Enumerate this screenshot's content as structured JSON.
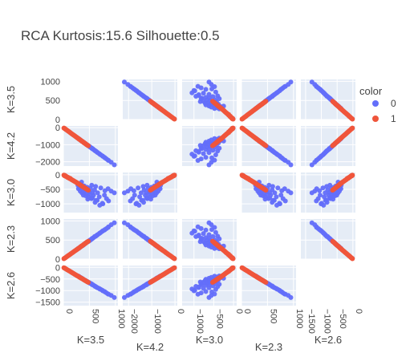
{
  "title": "RCA Kurtosis:15.6  Silhouette:0.5",
  "chart_data": {
    "type": "scatter",
    "subtype": "scatter-matrix",
    "dimensions": [
      "K=3.5",
      "K=4.2",
      "K=3.0",
      "K=2.3",
      "K=2.6"
    ],
    "ranges": [
      [
        0,
        1050
      ],
      [
        -2250,
        100
      ],
      [
        -1300,
        80
      ],
      [
        0,
        1050
      ],
      [
        -1650,
        80
      ]
    ],
    "ticks": [
      {
        "values": [
          0,
          500,
          1000
        ],
        "labels": [
          "0",
          "500",
          "1000"
        ]
      },
      {
        "values": [
          -2000,
          -1000,
          0
        ],
        "labels": [
          "−2000",
          "−1000",
          "0"
        ]
      },
      {
        "values": [
          -1000,
          -500,
          0
        ],
        "labels": [
          "−1000",
          "−500",
          "0"
        ]
      },
      {
        "values": [
          0,
          500,
          1000
        ],
        "labels": [
          "0",
          "500",
          "1000"
        ]
      },
      {
        "values": [
          -1500,
          -1000,
          -500,
          0
        ],
        "labels": [
          "−1500",
          "−1000",
          "−500",
          "0"
        ]
      }
    ],
    "diagonal": "empty",
    "grid": true,
    "legend": {
      "title": "color",
      "position": "top-right",
      "entries": [
        {
          "name": "0",
          "color": "#636efa"
        },
        {
          "name": "1",
          "color": "#ef553b"
        }
      ]
    },
    "series": [
      {
        "name": "0",
        "color": "#636efa",
        "points": [
          [
            980,
            -2180,
            -620,
            950,
            -1300
          ],
          [
            920,
            -2030,
            -560,
            900,
            -1210
          ],
          [
            870,
            -1920,
            -900,
            845,
            -1160
          ],
          [
            830,
            -1830,
            -820,
            800,
            -1100
          ],
          [
            790,
            -1740,
            -700,
            760,
            -1040
          ],
          [
            750,
            -1650,
            -980,
            730,
            -990
          ],
          [
            720,
            -1590,
            -450,
            700,
            -950
          ],
          [
            690,
            -1520,
            -760,
            670,
            -910
          ],
          [
            660,
            -1460,
            -620,
            640,
            -880
          ],
          [
            630,
            -1390,
            -880,
            610,
            -840
          ],
          [
            600,
            -1330,
            -520,
            590,
            -800
          ],
          [
            580,
            -1280,
            -700,
            560,
            -770
          ],
          [
            560,
            -1240,
            -610,
            540,
            -740
          ],
          [
            540,
            -1190,
            -820,
            520,
            -710
          ],
          [
            520,
            -1150,
            -470,
            500,
            -690
          ],
          [
            500,
            -1100,
            -590,
            480,
            -660
          ],
          [
            480,
            -1060,
            -760,
            460,
            -640
          ],
          [
            460,
            -1020,
            -430,
            445,
            -610
          ],
          [
            440,
            -980,
            -650,
            430,
            -590
          ],
          [
            420,
            -930,
            -540,
            410,
            -560
          ],
          [
            400,
            -890,
            -380,
            390,
            -540
          ],
          [
            385,
            -850,
            -700,
            370,
            -510
          ],
          [
            370,
            -820,
            -490,
            355,
            -490
          ],
          [
            355,
            -790,
            -620,
            340,
            -470
          ],
          [
            340,
            -760,
            -330,
            330,
            -450
          ],
          [
            325,
            -720,
            -560,
            315,
            -430
          ],
          [
            310,
            -690,
            -420,
            300,
            -410
          ],
          [
            300,
            -660,
            -300,
            290,
            -390
          ],
          [
            290,
            -640,
            -480,
            280,
            -380
          ],
          [
            280,
            -620,
            -360,
            270,
            -370
          ],
          [
            700,
            -1550,
            -1050,
            680,
            -930
          ],
          [
            760,
            -1680,
            -1000,
            740,
            -1010
          ],
          [
            610,
            -1350,
            -950,
            590,
            -820
          ],
          [
            650,
            -1440,
            -880,
            630,
            -870
          ],
          [
            560,
            -1230,
            -800,
            545,
            -750
          ],
          [
            470,
            -1040,
            -840,
            455,
            -630
          ],
          [
            510,
            -1120,
            -680,
            495,
            -680
          ],
          [
            430,
            -950,
            -720,
            415,
            -570
          ],
          [
            395,
            -870,
            -600,
            380,
            -530
          ],
          [
            350,
            -780,
            -250,
            340,
            -470
          ],
          [
            800,
            -1770,
            -550,
            775,
            -1060
          ],
          [
            860,
            -1900,
            -480,
            830,
            -1150
          ],
          [
            620,
            -1370,
            -400,
            600,
            -830
          ],
          [
            545,
            -1200,
            -360,
            530,
            -730
          ]
        ]
      },
      {
        "name": "1",
        "color": "#ef553b",
        "points": [
          [
            20,
            -40,
            -30,
            20,
            -25
          ],
          [
            40,
            -85,
            -50,
            38,
            -55
          ],
          [
            60,
            -130,
            -60,
            58,
            -80
          ],
          [
            80,
            -175,
            -90,
            78,
            -110
          ],
          [
            100,
            -220,
            -100,
            97,
            -135
          ],
          [
            120,
            -265,
            -130,
            116,
            -160
          ],
          [
            140,
            -310,
            -140,
            136,
            -190
          ],
          [
            160,
            -355,
            -170,
            155,
            -215
          ],
          [
            180,
            -400,
            -190,
            175,
            -245
          ],
          [
            200,
            -440,
            -210,
            194,
            -270
          ],
          [
            220,
            -485,
            -230,
            213,
            -300
          ],
          [
            240,
            -530,
            -250,
            232,
            -325
          ],
          [
            255,
            -565,
            -270,
            248,
            -345
          ],
          [
            270,
            -600,
            -290,
            262,
            -365
          ],
          [
            285,
            -630,
            -300,
            276,
            -385
          ],
          [
            300,
            -665,
            -320,
            290,
            -405
          ],
          [
            315,
            -700,
            -340,
            305,
            -425
          ],
          [
            330,
            -730,
            -360,
            320,
            -445
          ],
          [
            345,
            -765,
            -380,
            335,
            -465
          ],
          [
            360,
            -800,
            -395,
            350,
            -485
          ],
          [
            375,
            -830,
            -410,
            365,
            -505
          ],
          [
            390,
            -865,
            -430,
            380,
            -525
          ],
          [
            405,
            -900,
            -445,
            395,
            -545
          ],
          [
            420,
            -930,
            -460,
            410,
            -565
          ],
          [
            435,
            -965,
            -480,
            425,
            -585
          ],
          [
            450,
            -1000,
            -495,
            440,
            -605
          ],
          [
            465,
            -1030,
            -515,
            455,
            -625
          ],
          [
            480,
            -1060,
            -530,
            470,
            -645
          ],
          [
            30,
            -65,
            -20,
            29,
            -40
          ],
          [
            50,
            -110,
            -45,
            48,
            -68
          ],
          [
            70,
            -155,
            -75,
            68,
            -95
          ],
          [
            90,
            -200,
            -85,
            88,
            -122
          ],
          [
            110,
            -245,
            -115,
            107,
            -150
          ],
          [
            130,
            -290,
            -120,
            126,
            -176
          ],
          [
            150,
            -335,
            -155,
            146,
            -203
          ],
          [
            170,
            -380,
            -175,
            165,
            -230
          ],
          [
            190,
            -420,
            -200,
            184,
            -258
          ],
          [
            210,
            -465,
            -220,
            204,
            -285
          ],
          [
            230,
            -510,
            -240,
            223,
            -312
          ],
          [
            250,
            -555,
            -260,
            242,
            -340
          ],
          [
            265,
            -585,
            -280,
            257,
            -360
          ],
          [
            280,
            -620,
            -295,
            271,
            -380
          ],
          [
            295,
            -655,
            -310,
            286,
            -400
          ],
          [
            310,
            -690,
            -330,
            300,
            -420
          ],
          [
            325,
            -720,
            -350,
            315,
            -440
          ],
          [
            340,
            -755,
            -370,
            330,
            -460
          ],
          [
            355,
            -790,
            -385,
            345,
            -480
          ],
          [
            370,
            -820,
            -400,
            360,
            -500
          ],
          [
            385,
            -855,
            -420,
            375,
            -520
          ],
          [
            400,
            -890,
            -435,
            390,
            -540
          ],
          [
            415,
            -920,
            -455,
            405,
            -560
          ],
          [
            430,
            -955,
            -470,
            420,
            -580
          ],
          [
            445,
            -990,
            -490,
            435,
            -600
          ],
          [
            460,
            -1020,
            -505,
            450,
            -620
          ],
          [
            10,
            -20,
            -10,
            10,
            -14
          ],
          [
            15,
            -30,
            -25,
            15,
            -20
          ]
        ]
      }
    ]
  }
}
